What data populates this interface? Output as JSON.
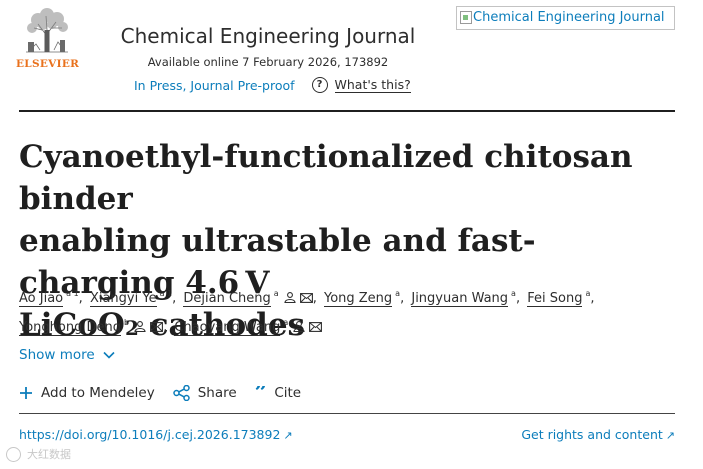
{
  "publisher": {
    "name": "ELSEVIER"
  },
  "journal": {
    "title": "Chemical Engineering Journal",
    "available": "Available online 7 February 2026, 173892",
    "status": "In Press, Journal Pre-proof",
    "whats_this": "What's this?",
    "cover_alt": "Chemical Engineering Journal"
  },
  "article": {
    "title_line1": "Cyanoethyl-functionalized chitosan binder",
    "title_line2": "enabling ultrastable and fast-charging 4.6 V",
    "title_line3_pre": "LiCoO",
    "title_line3_sub": "2",
    "title_line3_post": " cathodes"
  },
  "authors": [
    {
      "name": "Ao Jiao",
      "aff": "a 1",
      "person": false,
      "mail": false
    },
    {
      "name": "Xiangyi Ye",
      "aff": "a 1",
      "person": false,
      "mail": false
    },
    {
      "name": "Dejian Cheng",
      "aff": "a",
      "person": true,
      "mail": true
    },
    {
      "name": "Yong Zeng",
      "aff": "a",
      "person": false,
      "mail": false
    },
    {
      "name": "Jingyuan Wang",
      "aff": "a",
      "person": false,
      "mail": false
    },
    {
      "name": "Fei Song",
      "aff": "a",
      "person": false,
      "mail": false
    },
    {
      "name": "Yonghong Deng",
      "aff": "b",
      "person": true,
      "mail": true
    },
    {
      "name": "Chaoyang Wang",
      "aff": "a",
      "person": true,
      "mail": true
    }
  ],
  "show_more": "Show more",
  "actions": {
    "mendeley": "Add to Mendeley",
    "share": "Share",
    "cite": "Cite"
  },
  "doi": "https://doi.org/10.1016/j.cej.2026.173892",
  "rights": "Get rights and content",
  "arrow": "↗",
  "watermark": "大红数据",
  "colors": {
    "link": "#0c7dbb",
    "elsevier_orange": "#e9711c",
    "text": "#1f1f1f"
  }
}
